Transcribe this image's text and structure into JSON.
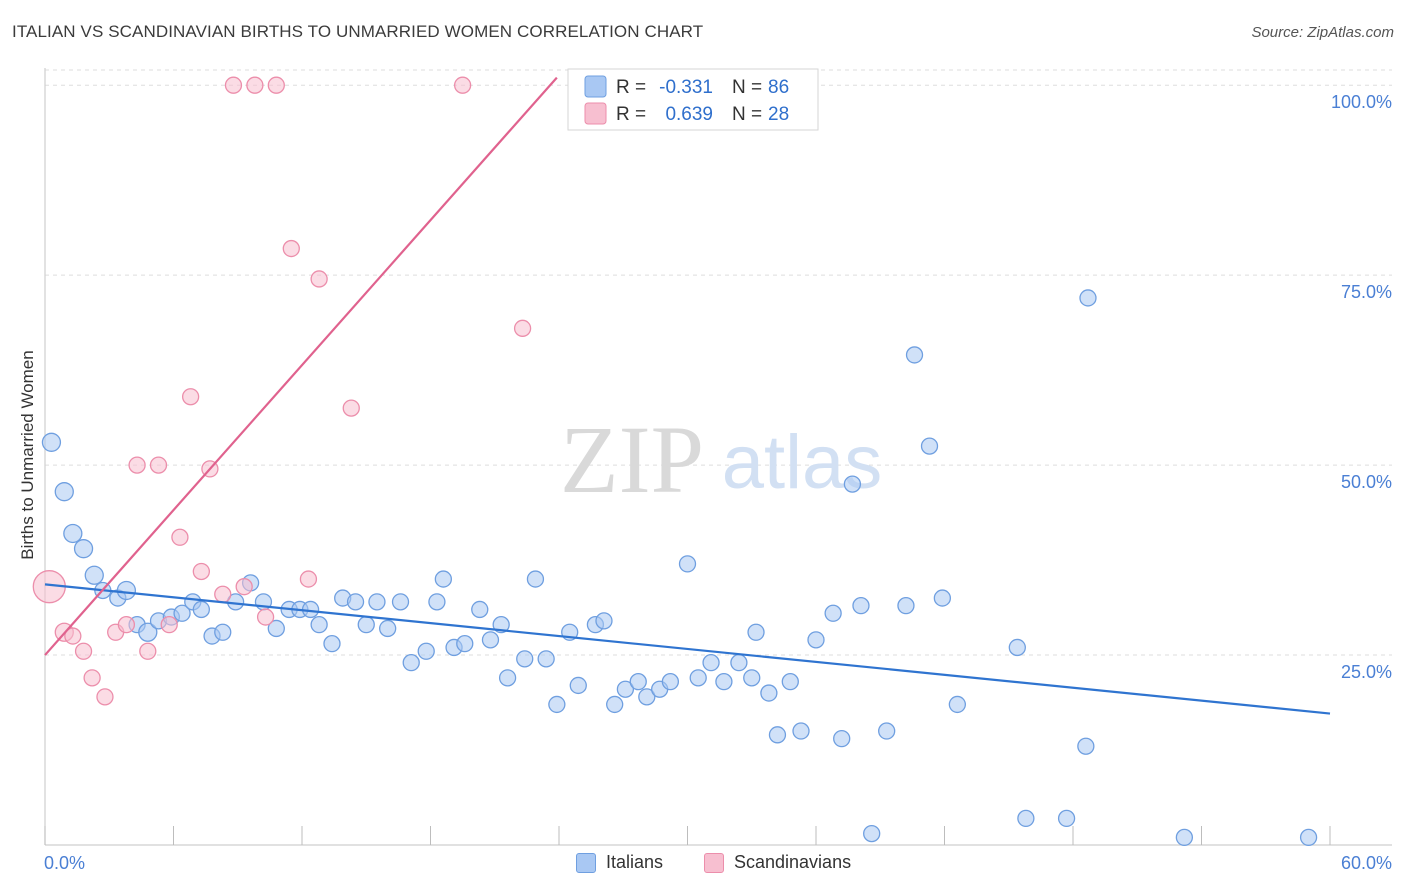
{
  "title": "ITALIAN VS SCANDINAVIAN BIRTHS TO UNMARRIED WOMEN CORRELATION CHART",
  "source": "Source: ZipAtlas.com",
  "watermark": {
    "zip": "ZIP",
    "atlas": "atlas"
  },
  "legend": {
    "rows": [
      {
        "r_label": "R =",
        "r_value": "-0.331",
        "n_label": "N =",
        "n_value": "86"
      },
      {
        "r_label": "R =",
        "r_value": "0.639",
        "n_label": "N =",
        "n_value": "28"
      }
    ]
  },
  "bottom_legend": {
    "italians": "Italians",
    "scandinavians": "Scandinavians"
  },
  "chart_data": {
    "type": "scatter",
    "title": "ITALIAN VS SCANDINAVIAN BIRTHS TO UNMARRIED WOMEN CORRELATION CHART",
    "xlabel": "",
    "ylabel": "Births to Unmarried Women",
    "xlim": [
      0,
      60
    ],
    "ylim": [
      0,
      102
    ],
    "x_tick_labels": [
      "0.0%",
      "60.0%"
    ],
    "y_ticks": [
      25,
      50,
      75,
      100
    ],
    "y_tick_labels": [
      "25.0%",
      "50.0%",
      "75.0%",
      "100.0%"
    ],
    "grid": true,
    "legend_position": "top-center",
    "colors": {
      "italians_fill": "#a9c8f3",
      "italians_stroke": "#6f9fe0",
      "italians_line": "#2f74d0",
      "scandinavians_fill": "#f7bfd0",
      "scandinavians_stroke": "#ec8eab",
      "scandinavians_line": "#e0628e",
      "value_text": "#2f6fcc"
    },
    "series": [
      {
        "name": "Italians",
        "r": -0.331,
        "n": 86,
        "trend": {
          "x0": 0,
          "y0": 34.3,
          "x1": 60,
          "y1": 17.3
        },
        "points": [
          [
            0.3,
            53,
            9
          ],
          [
            0.9,
            46.5,
            9
          ],
          [
            1.3,
            41,
            9
          ],
          [
            1.8,
            39,
            9
          ],
          [
            2.3,
            35.5,
            9
          ],
          [
            2.7,
            33.5,
            8
          ],
          [
            3.4,
            32.5,
            8
          ],
          [
            3.8,
            33.5,
            9
          ],
          [
            4.3,
            29,
            8
          ],
          [
            4.8,
            28,
            9
          ],
          [
            5.3,
            29.5,
            8
          ],
          [
            5.9,
            30,
            8
          ],
          [
            6.4,
            30.5,
            8
          ],
          [
            6.9,
            32,
            8
          ],
          [
            7.3,
            31,
            8
          ],
          [
            7.8,
            27.5,
            8
          ],
          [
            8.3,
            28,
            8
          ],
          [
            8.9,
            32,
            8
          ],
          [
            9.6,
            34.5,
            8
          ],
          [
            10.2,
            32,
            8
          ],
          [
            10.8,
            28.5,
            8
          ],
          [
            11.4,
            31,
            8
          ],
          [
            11.9,
            31,
            8
          ],
          [
            12.4,
            31,
            8
          ],
          [
            12.8,
            29,
            8
          ],
          [
            13.4,
            26.5,
            8
          ],
          [
            13.9,
            32.5,
            8
          ],
          [
            14.5,
            32,
            8
          ],
          [
            15.0,
            29,
            8
          ],
          [
            15.5,
            32,
            8
          ],
          [
            16.0,
            28.5,
            8
          ],
          [
            16.6,
            32,
            8
          ],
          [
            17.1,
            24,
            8
          ],
          [
            17.8,
            25.5,
            8
          ],
          [
            18.3,
            32,
            8
          ],
          [
            18.6,
            35,
            8
          ],
          [
            19.1,
            26,
            8
          ],
          [
            19.6,
            26.5,
            8
          ],
          [
            20.3,
            31,
            8
          ],
          [
            20.8,
            27,
            8
          ],
          [
            21.3,
            29,
            8
          ],
          [
            21.6,
            22,
            8
          ],
          [
            22.4,
            24.5,
            8
          ],
          [
            22.9,
            35,
            8
          ],
          [
            23.4,
            24.5,
            8
          ],
          [
            23.9,
            18.5,
            8
          ],
          [
            24.5,
            28,
            8
          ],
          [
            24.9,
            21,
            8
          ],
          [
            25.7,
            29,
            8
          ],
          [
            26.1,
            29.5,
            8
          ],
          [
            26.6,
            18.5,
            8
          ],
          [
            27.1,
            20.5,
            8
          ],
          [
            27.7,
            21.5,
            8
          ],
          [
            28.1,
            19.5,
            8
          ],
          [
            28.7,
            20.5,
            8
          ],
          [
            29.2,
            21.5,
            8
          ],
          [
            30.0,
            37,
            8
          ],
          [
            30.5,
            22,
            8
          ],
          [
            31.1,
            24,
            8
          ],
          [
            31.7,
            21.5,
            8
          ],
          [
            32.4,
            24,
            8
          ],
          [
            33.0,
            22,
            8
          ],
          [
            33.2,
            28,
            8
          ],
          [
            33.8,
            20,
            8
          ],
          [
            34.2,
            14.5,
            8
          ],
          [
            34.8,
            21.5,
            8
          ],
          [
            35.3,
            15,
            8
          ],
          [
            36.0,
            27,
            8
          ],
          [
            36.8,
            30.5,
            8
          ],
          [
            37.2,
            14,
            8
          ],
          [
            37.7,
            47.5,
            8
          ],
          [
            38.1,
            31.5,
            8
          ],
          [
            38.6,
            1.5,
            8
          ],
          [
            39.3,
            15,
            8
          ],
          [
            40.2,
            31.5,
            8
          ],
          [
            40.6,
            64.5,
            8
          ],
          [
            41.3,
            52.5,
            8
          ],
          [
            41.9,
            32.5,
            8
          ],
          [
            42.6,
            18.5,
            8
          ],
          [
            45.4,
            26,
            8
          ],
          [
            45.8,
            3.5,
            8
          ],
          [
            47.7,
            3.5,
            8
          ],
          [
            48.6,
            13,
            8
          ],
          [
            48.7,
            72,
            8
          ],
          [
            53.2,
            1,
            8
          ],
          [
            59.0,
            1,
            8
          ]
        ]
      },
      {
        "name": "Scandinavians",
        "r": 0.639,
        "n": 28,
        "trend": {
          "x0": 0,
          "y0": 25.0,
          "x1": 23.9,
          "y1": 101.0
        },
        "points": [
          [
            0.2,
            34,
            16
          ],
          [
            0.9,
            28,
            9
          ],
          [
            1.3,
            27.5,
            8
          ],
          [
            1.8,
            25.5,
            8
          ],
          [
            2.2,
            22,
            8
          ],
          [
            2.8,
            19.5,
            8
          ],
          [
            3.3,
            28,
            8
          ],
          [
            3.8,
            29,
            8
          ],
          [
            4.3,
            50,
            8
          ],
          [
            4.8,
            25.5,
            8
          ],
          [
            5.3,
            50,
            8
          ],
          [
            5.8,
            29,
            8
          ],
          [
            6.3,
            40.5,
            8
          ],
          [
            6.8,
            59,
            8
          ],
          [
            7.3,
            36,
            8
          ],
          [
            7.7,
            49.5,
            8
          ],
          [
            8.3,
            33,
            8
          ],
          [
            8.8,
            100,
            8
          ],
          [
            9.3,
            34,
            8
          ],
          [
            9.8,
            100,
            8
          ],
          [
            10.3,
            30,
            8
          ],
          [
            10.8,
            100,
            8
          ],
          [
            11.5,
            78.5,
            8
          ],
          [
            12.3,
            35,
            8
          ],
          [
            12.8,
            74.5,
            8
          ],
          [
            14.3,
            57.5,
            8
          ],
          [
            19.5,
            100,
            8
          ],
          [
            22.3,
            68,
            8
          ]
        ]
      }
    ]
  }
}
